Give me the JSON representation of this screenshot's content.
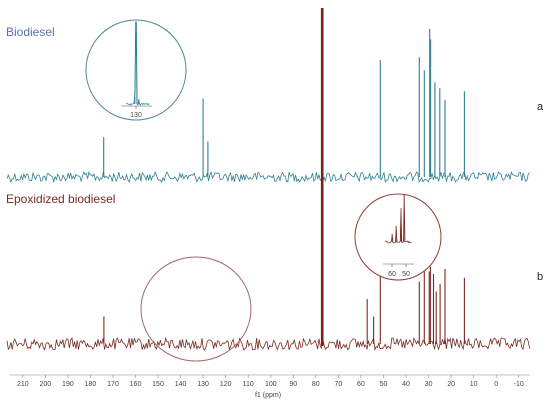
{
  "chart_data": {
    "type": "line",
    "title": "",
    "xlabel": "f1 (ppm)",
    "ylabel": "",
    "x_reversed": true,
    "xlim": [
      217,
      -15
    ],
    "x_ticks": [
      210,
      200,
      190,
      180,
      170,
      160,
      150,
      140,
      130,
      120,
      110,
      100,
      90,
      80,
      70,
      60,
      50,
      40,
      30,
      20,
      10,
      0,
      -10
    ],
    "x_tick_labels": [
      "210",
      "200",
      "190",
      "180",
      "170",
      "160",
      "150",
      "140",
      "130",
      "120",
      "110",
      "100",
      "90",
      "80",
      "70",
      "60",
      "50",
      "40",
      "30",
      "20",
      "10",
      "0",
      "-10"
    ],
    "solvent_peak": {
      "x": 77.2,
      "height": 1.0,
      "color": "#7a1f12"
    },
    "series": [
      {
        "name": "Biodiesel",
        "panel": "a",
        "color": "#2f7f95",
        "label_color": "#5b6fa6",
        "peaks": [
          {
            "x": 174.1,
            "height": 0.27
          },
          {
            "x": 130.0,
            "height": 0.53
          },
          {
            "x": 127.9,
            "height": 0.24
          },
          {
            "x": 51.4,
            "height": 0.79
          },
          {
            "x": 34.1,
            "height": 0.81
          },
          {
            "x": 31.9,
            "height": 0.72
          },
          {
            "x": 29.5,
            "height": 1.0
          },
          {
            "x": 29.1,
            "height": 0.93
          },
          {
            "x": 27.2,
            "height": 0.64
          },
          {
            "x": 25.0,
            "height": 0.6
          },
          {
            "x": 22.7,
            "height": 0.52
          },
          {
            "x": 14.1,
            "height": 0.58
          }
        ],
        "inset": {
          "tick_labels": [
            "130"
          ]
        }
      },
      {
        "name": "Epoxidized biodiesel",
        "panel": "b",
        "color": "#7a2a22",
        "label_color": "#7a2a22",
        "peaks": [
          {
            "x": 174.0,
            "height": 0.22
          },
          {
            "x": 57.2,
            "height": 0.36
          },
          {
            "x": 54.4,
            "height": 0.22
          },
          {
            "x": 51.4,
            "height": 0.58
          },
          {
            "x": 34.1,
            "height": 0.5
          },
          {
            "x": 31.9,
            "height": 0.58
          },
          {
            "x": 29.7,
            "height": 0.58
          },
          {
            "x": 29.2,
            "height": 0.62
          },
          {
            "x": 27.8,
            "height": 0.56
          },
          {
            "x": 26.6,
            "height": 0.42
          },
          {
            "x": 24.9,
            "height": 0.48
          },
          {
            "x": 22.7,
            "height": 0.6
          },
          {
            "x": 14.1,
            "height": 0.53
          }
        ],
        "inset": {
          "tick_labels": [
            "60",
            "50"
          ]
        }
      }
    ]
  }
}
